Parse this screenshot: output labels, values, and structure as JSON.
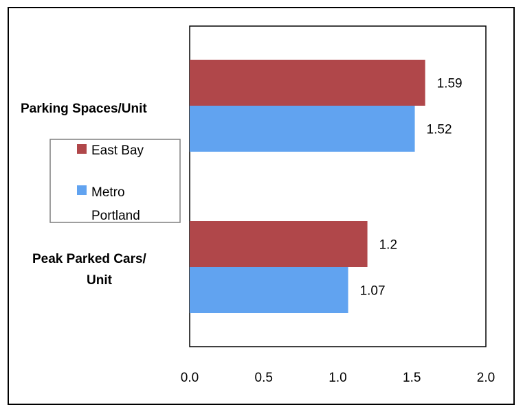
{
  "chart_data": {
    "type": "bar",
    "orientation": "horizontal",
    "categories": [
      "Parking Spaces/Unit",
      "Peak Parked Cars/ Unit"
    ],
    "series": [
      {
        "name": "East Bay",
        "color": "#b0474a",
        "values": [
          1.59,
          1.2
        ],
        "labels": [
          "1.59",
          "1.2"
        ]
      },
      {
        "name": "Metro Portland",
        "color": "#61a3f0",
        "values": [
          1.52,
          1.07
        ],
        "labels": [
          "1.52",
          "1.07"
        ]
      }
    ],
    "xlim": [
      0,
      2.0
    ],
    "xticks": [
      "0.0",
      "0.5",
      "1.0",
      "1.5",
      "2.0"
    ],
    "xticks_values": [
      0,
      0.5,
      1.0,
      1.5,
      2.0
    ],
    "grid": false,
    "legend_position": "left"
  }
}
